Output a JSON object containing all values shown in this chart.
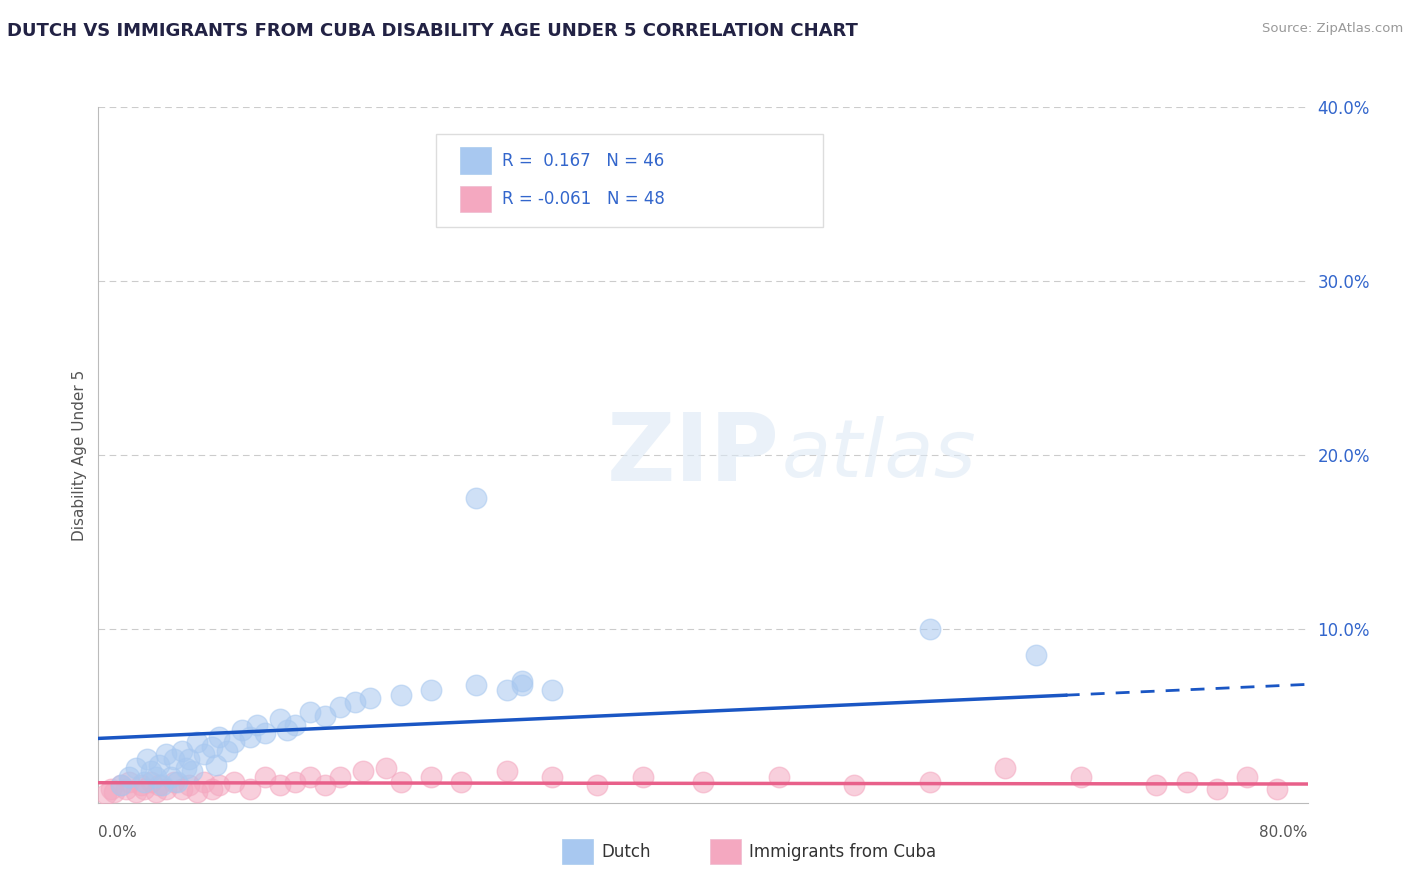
{
  "title": "DUTCH VS IMMIGRANTS FROM CUBA DISABILITY AGE UNDER 5 CORRELATION CHART",
  "source": "Source: ZipAtlas.com",
  "ylabel": "Disability Age Under 5",
  "xlim": [
    0.0,
    0.8
  ],
  "ylim": [
    0.0,
    0.4
  ],
  "yticks": [
    0.0,
    0.1,
    0.2,
    0.3,
    0.4
  ],
  "ytick_labels": [
    "",
    "10.0%",
    "20.0%",
    "30.0%",
    "40.0%"
  ],
  "dutch_color": "#a8c8f0",
  "cuba_color": "#f4a8c0",
  "trend_dutch_color": "#1a56c4",
  "trend_cuba_color": "#e8608a",
  "text_color": "#3366cc",
  "background_color": "#ffffff",
  "dutch_x": [
    0.015,
    0.02,
    0.025,
    0.03,
    0.032,
    0.035,
    0.038,
    0.04,
    0.042,
    0.045,
    0.048,
    0.05,
    0.052,
    0.055,
    0.058,
    0.06,
    0.062,
    0.065,
    0.07,
    0.075,
    0.078,
    0.08,
    0.085,
    0.09,
    0.095,
    0.1,
    0.105,
    0.11,
    0.12,
    0.125,
    0.13,
    0.14,
    0.15,
    0.16,
    0.17,
    0.18,
    0.2,
    0.22,
    0.25,
    0.27,
    0.28,
    0.3,
    0.55,
    0.25,
    0.62,
    0.28
  ],
  "dutch_y": [
    0.01,
    0.015,
    0.02,
    0.012,
    0.025,
    0.018,
    0.015,
    0.022,
    0.01,
    0.028,
    0.015,
    0.025,
    0.012,
    0.03,
    0.02,
    0.025,
    0.018,
    0.035,
    0.028,
    0.032,
    0.022,
    0.038,
    0.03,
    0.035,
    0.042,
    0.038,
    0.045,
    0.04,
    0.048,
    0.042,
    0.045,
    0.052,
    0.05,
    0.055,
    0.058,
    0.06,
    0.062,
    0.065,
    0.068,
    0.065,
    0.07,
    0.065,
    0.1,
    0.175,
    0.085,
    0.068
  ],
  "cuba_x": [
    0.005,
    0.008,
    0.01,
    0.015,
    0.018,
    0.02,
    0.025,
    0.028,
    0.03,
    0.035,
    0.038,
    0.04,
    0.045,
    0.05,
    0.055,
    0.06,
    0.065,
    0.07,
    0.075,
    0.08,
    0.09,
    0.1,
    0.11,
    0.12,
    0.13,
    0.14,
    0.15,
    0.16,
    0.175,
    0.19,
    0.2,
    0.22,
    0.24,
    0.27,
    0.3,
    0.33,
    0.36,
    0.4,
    0.45,
    0.5,
    0.55,
    0.6,
    0.65,
    0.7,
    0.72,
    0.74,
    0.76,
    0.78
  ],
  "cuba_y": [
    0.005,
    0.008,
    0.006,
    0.01,
    0.008,
    0.012,
    0.006,
    0.01,
    0.008,
    0.012,
    0.006,
    0.01,
    0.008,
    0.012,
    0.008,
    0.01,
    0.006,
    0.012,
    0.008,
    0.01,
    0.012,
    0.008,
    0.015,
    0.01,
    0.012,
    0.015,
    0.01,
    0.015,
    0.018,
    0.02,
    0.012,
    0.015,
    0.012,
    0.018,
    0.015,
    0.01,
    0.015,
    0.012,
    0.015,
    0.01,
    0.012,
    0.02,
    0.015,
    0.01,
    0.012,
    0.008,
    0.015,
    0.008
  ]
}
